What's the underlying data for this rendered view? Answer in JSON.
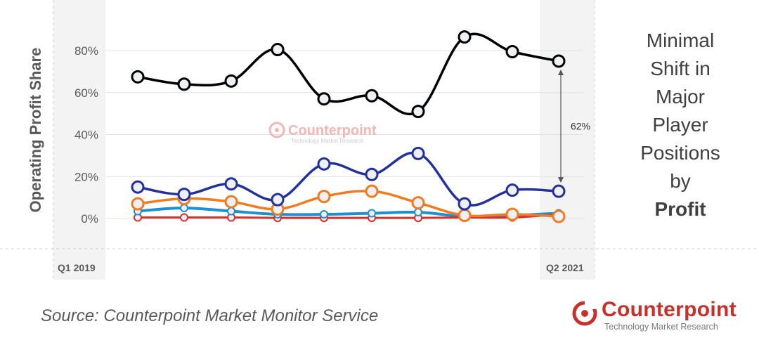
{
  "chart_data": {
    "type": "line",
    "ylabel": "Operating Profit Share",
    "x_start_label": "Q1 2019",
    "x_end_label": "Q2 2021",
    "ylim": [
      -0.1,
      0.9
    ],
    "yticks": [
      0,
      0.2,
      0.4,
      0.6,
      0.8
    ],
    "ytick_labels": [
      "0%",
      "20%",
      "40%",
      "60%",
      "80%"
    ],
    "grid": true,
    "x": [
      1,
      2,
      3,
      4,
      5,
      6,
      7,
      8,
      9,
      10
    ],
    "series": [
      {
        "color": "#000000",
        "values": [
          0.675,
          0.64,
          0.655,
          0.805,
          0.57,
          0.585,
          0.51,
          0.865,
          0.795,
          0.75
        ]
      },
      {
        "color": "#22319c",
        "values": [
          0.15,
          0.115,
          0.165,
          0.09,
          0.26,
          0.21,
          0.31,
          0.07,
          0.135,
          0.13
        ]
      },
      {
        "color": "#f07b20",
        "values": [
          0.07,
          0.095,
          0.08,
          0.045,
          0.105,
          0.13,
          0.075,
          0.015,
          0.02,
          0.01
        ]
      },
      {
        "color": "#1e90d0",
        "values": [
          0.035,
          0.05,
          0.035,
          0.02,
          0.02,
          0.025,
          0.03,
          0.01,
          0.015,
          0.025
        ]
      },
      {
        "color": "#d8302a",
        "values": [
          0.005,
          0.005,
          0.005,
          0.003,
          0.003,
          0.003,
          0.003,
          0.005,
          0.005,
          0.02
        ]
      }
    ],
    "annotation": "62%"
  },
  "side_title": {
    "lines": [
      "Minimal",
      "Shift in",
      "Major",
      "Player",
      "Positions",
      "by"
    ],
    "bold_word": "Profit"
  },
  "source": "Source: Counterpoint Market Monitor Service",
  "logo": {
    "name": "Counterpoint",
    "tagline": "Technology Market Research"
  },
  "watermark": {
    "name": "Counterpoint",
    "tagline": "Technology Market Research"
  },
  "colors": {
    "accent": "#c9302c",
    "highlight_band": "#f3f3f3",
    "grid": "#e0e0e0"
  }
}
